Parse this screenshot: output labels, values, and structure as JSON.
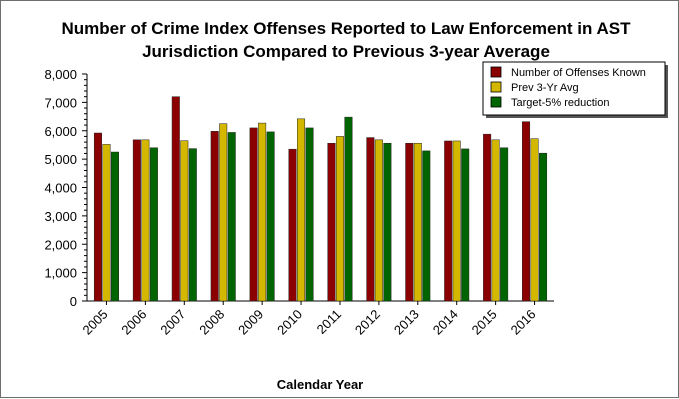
{
  "chart_data": {
    "type": "bar",
    "title": [
      "Number of Crime Index Offenses Reported to Law Enforcement in AST",
      "Jurisdiction Compared to Previous 3-year Average"
    ],
    "xlabel": "Calendar Year",
    "ylabel": "",
    "categories": [
      "2005",
      "2006",
      "2007",
      "2008",
      "2009",
      "2010",
      "2011",
      "2012",
      "2013",
      "2014",
      "2015",
      "2016"
    ],
    "ylim": [
      0,
      8000
    ],
    "yticks": [
      0,
      1000,
      2000,
      3000,
      4000,
      5000,
      6000,
      7000,
      8000
    ],
    "ytick_labels": [
      "0",
      "1,000",
      "2,000",
      "3,000",
      "4,000",
      "5,000",
      "6,000",
      "7,000",
      "8,000"
    ],
    "grid": false,
    "legend_position": "top-right",
    "series": [
      {
        "name": "Number of Offenses Known",
        "color": "#8b0000",
        "values": [
          5920,
          5680,
          7200,
          5980,
          6100,
          5350,
          5560,
          5760,
          5560,
          5640,
          5880,
          6320
        ]
      },
      {
        "name": "Prev 3-Yr Avg",
        "color": "#d4b800",
        "values": [
          5520,
          5680,
          5650,
          6250,
          6270,
          6420,
          5800,
          5680,
          5560,
          5640,
          5680,
          5720
        ]
      },
      {
        "name": "Target-5% reduction",
        "color": "#006400",
        "values": [
          5250,
          5400,
          5370,
          5940,
          5960,
          6100,
          6480,
          5560,
          5290,
          5360,
          5400,
          5210
        ]
      }
    ]
  }
}
